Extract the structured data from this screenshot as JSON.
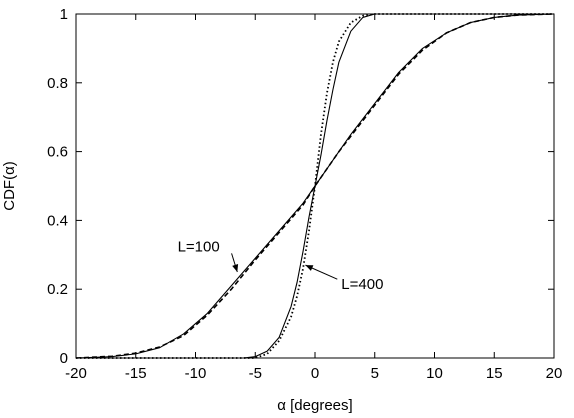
{
  "chart_data": {
    "type": "line",
    "title": "",
    "xlabel": "α   [degrees]",
    "ylabel": "CDF(α)",
    "xlim": [
      -20,
      20
    ],
    "ylim": [
      0,
      1
    ],
    "xticks": [
      -20,
      -15,
      -10,
      -5,
      0,
      5,
      10,
      15,
      20
    ],
    "yticks": [
      0,
      0.2,
      0.4,
      0.6,
      0.8,
      1
    ],
    "grid": false,
    "series": [
      {
        "name": "",
        "style": "solid",
        "x": [
          -20,
          -17,
          -15,
          -13,
          -11,
          -9,
          -7,
          -5,
          -3,
          -2,
          -1,
          0,
          1,
          2,
          3,
          5,
          7,
          9,
          11,
          13,
          15,
          17,
          20
        ],
        "y": [
          0.0,
          0.004,
          0.012,
          0.03,
          0.07,
          0.13,
          0.21,
          0.29,
          0.37,
          0.41,
          0.45,
          0.5,
          0.55,
          0.6,
          0.65,
          0.74,
          0.83,
          0.9,
          0.945,
          0.975,
          0.99,
          0.997,
          1.0
        ]
      },
      {
        "name": "",
        "style": "dashed",
        "x": [
          -20,
          -17,
          -15,
          -13,
          -11,
          -9,
          -7,
          -5,
          -3,
          -2,
          -1,
          0,
          1,
          2,
          3,
          5,
          7,
          9,
          11,
          13,
          15,
          17,
          20
        ],
        "y": [
          0.0,
          0.005,
          0.014,
          0.032,
          0.065,
          0.125,
          0.2,
          0.285,
          0.365,
          0.405,
          0.445,
          0.5,
          0.55,
          0.6,
          0.645,
          0.735,
          0.825,
          0.895,
          0.945,
          0.975,
          0.99,
          0.997,
          1.0
        ]
      },
      {
        "name": "",
        "style": "solid",
        "x": [
          -20,
          -6,
          -5,
          -4,
          -3,
          -2,
          -1.5,
          -1,
          -0.5,
          0,
          0.5,
          1,
          1.5,
          2,
          3,
          4,
          5,
          20
        ],
        "y": [
          0.0,
          0.0,
          0.004,
          0.02,
          0.06,
          0.15,
          0.22,
          0.31,
          0.41,
          0.5,
          0.59,
          0.69,
          0.78,
          0.86,
          0.95,
          0.99,
          1.0,
          1.0
        ]
      },
      {
        "name": "",
        "style": "dotted",
        "x": [
          -20,
          -5,
          -4,
          -3,
          -2,
          -1.5,
          -1,
          -0.5,
          0,
          0.5,
          1,
          1.5,
          2,
          3,
          4,
          5,
          20
        ],
        "y": [
          0.0,
          0.0,
          0.012,
          0.05,
          0.12,
          0.18,
          0.26,
          0.37,
          0.5,
          0.65,
          0.77,
          0.86,
          0.92,
          0.975,
          0.995,
          1.0,
          1.0
        ]
      }
    ],
    "annotations": [
      {
        "text": "L=100",
        "x": -11.5,
        "y": 0.31,
        "arrow_to": [
          -6.5,
          0.25
        ]
      },
      {
        "text": "L=400",
        "x": 2.2,
        "y": 0.2,
        "arrow_to": [
          -0.8,
          0.27
        ]
      }
    ]
  }
}
